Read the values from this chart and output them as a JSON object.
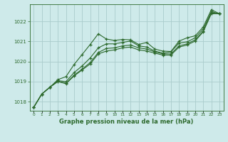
{
  "bg_color": "#ceeaea",
  "grid_color": "#aacccc",
  "line_color": "#2d6a2d",
  "marker_color": "#2d6a2d",
  "xlabel": "Graphe pression niveau de la mer (hPa)",
  "xlabel_color": "#2d6a2d",
  "ylim": [
    1017.55,
    1022.85
  ],
  "yticks": [
    1018,
    1019,
    1020,
    1021,
    1022
  ],
  "xticks": [
    0,
    1,
    2,
    3,
    4,
    5,
    6,
    7,
    8,
    9,
    10,
    11,
    12,
    13,
    14,
    15,
    16,
    17,
    18,
    19,
    20,
    21,
    22,
    23
  ],
  "series": [
    [
      1017.72,
      1018.38,
      1018.72,
      1019.1,
      1019.25,
      1019.85,
      1020.35,
      1020.85,
      1021.38,
      1021.12,
      1021.05,
      1021.1,
      1021.08,
      1020.85,
      1020.95,
      1020.62,
      1020.52,
      1020.5,
      1021.02,
      1021.18,
      1021.28,
      1021.72,
      1022.58,
      1022.38
    ],
    [
      1017.72,
      1018.38,
      1018.72,
      1019.05,
      1019.0,
      1019.45,
      1019.78,
      1020.18,
      1020.68,
      1020.88,
      1020.88,
      1020.95,
      1021.02,
      1020.78,
      1020.72,
      1020.52,
      1020.42,
      1020.48,
      1020.92,
      1020.98,
      1021.18,
      1021.62,
      1022.48,
      1022.38
    ],
    [
      1017.72,
      1018.38,
      1018.72,
      1019.02,
      1018.92,
      1019.32,
      1019.62,
      1019.95,
      1020.45,
      1020.65,
      1020.68,
      1020.78,
      1020.82,
      1020.68,
      1020.62,
      1020.48,
      1020.38,
      1020.38,
      1020.78,
      1020.88,
      1021.08,
      1021.52,
      1022.42,
      1022.38
    ],
    [
      1017.72,
      1018.38,
      1018.72,
      1019.0,
      1018.9,
      1019.28,
      1019.58,
      1019.88,
      1020.38,
      1020.52,
      1020.58,
      1020.68,
      1020.72,
      1020.58,
      1020.52,
      1020.42,
      1020.32,
      1020.32,
      1020.72,
      1020.82,
      1021.02,
      1021.48,
      1022.38,
      1022.38
    ]
  ]
}
